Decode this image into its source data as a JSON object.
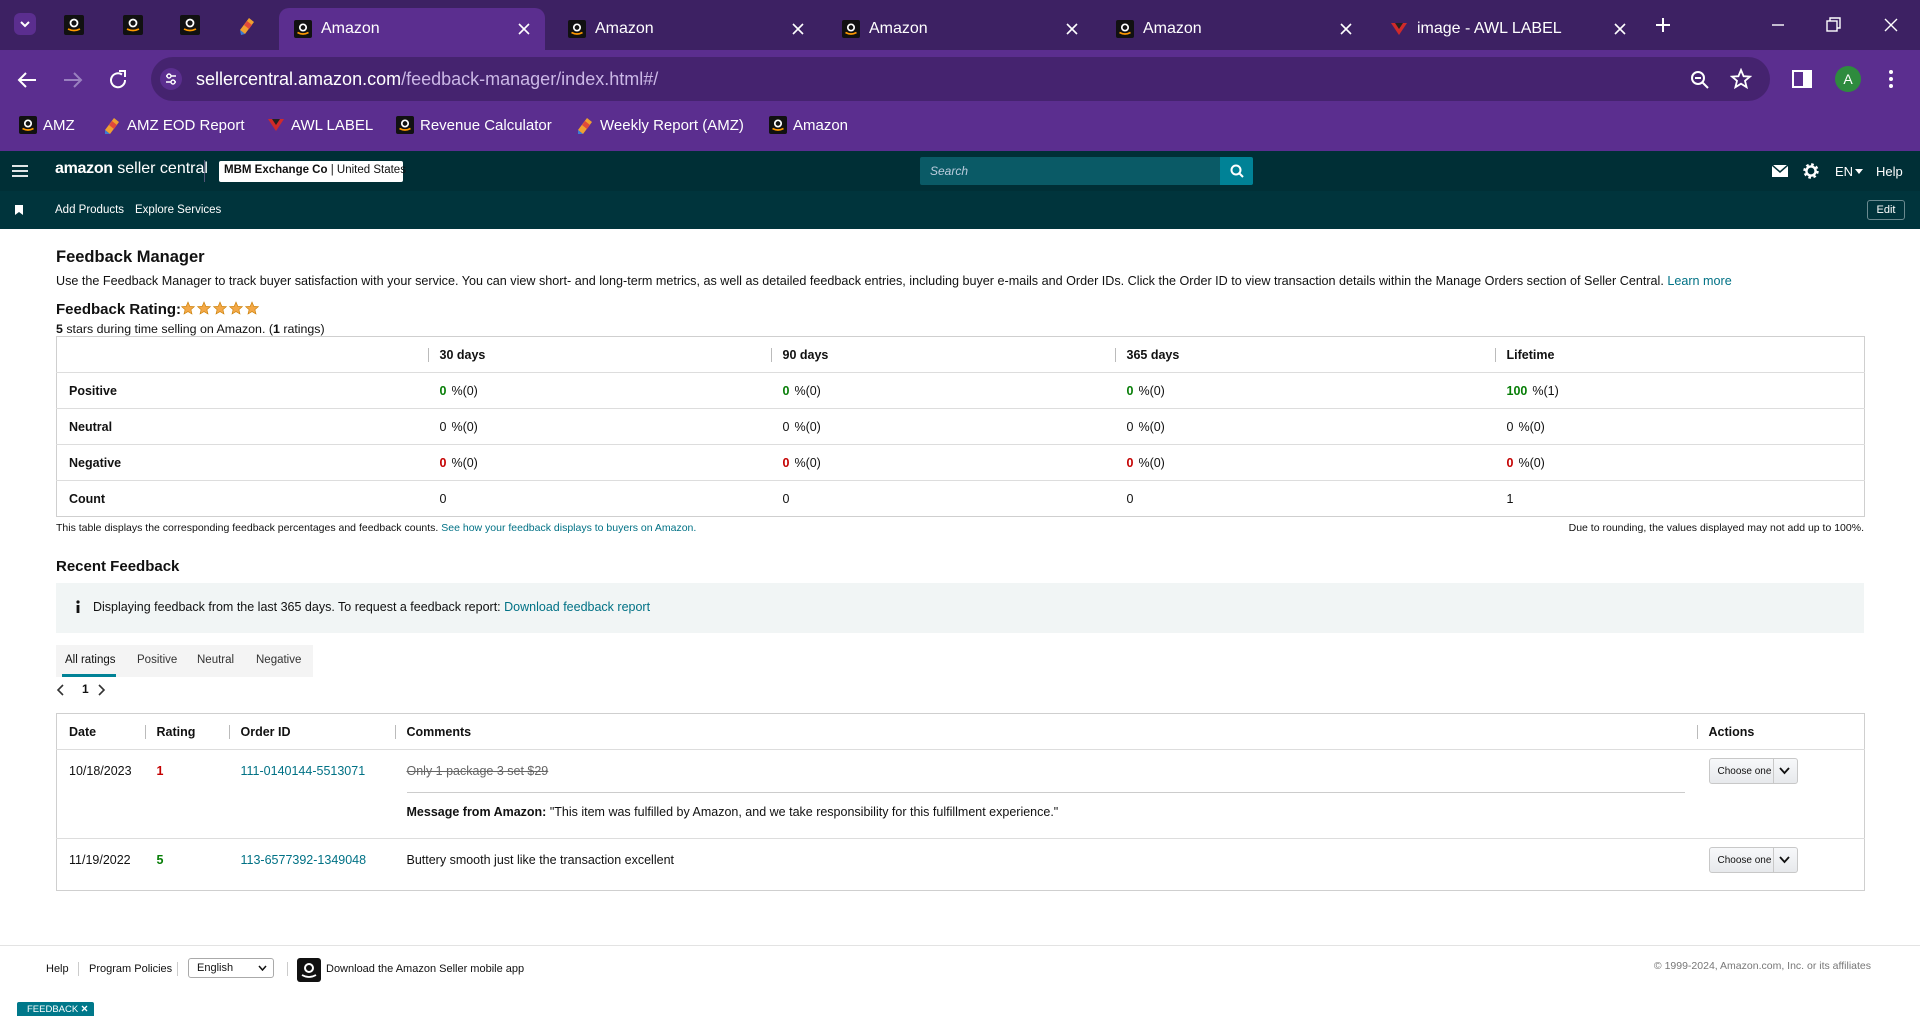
{
  "browser": {
    "tabs": [
      "Amazon",
      "Amazon",
      "Amazon",
      "Amazon",
      "image - AWL LABEL"
    ],
    "url_host": "sellercentral.amazon.com",
    "url_path": "/feedback-manager/index.html#/",
    "profile": "A",
    "bookmarks": [
      "AMZ",
      "AMZ EOD Report",
      "AWL LABEL",
      "Revenue Calculator",
      "Weekly Report (AMZ)",
      "Amazon"
    ]
  },
  "header": {
    "logo_brand": "amazon",
    "logo_product": "seller central",
    "account": "MBM Exchange Co",
    "marketplace": "United States",
    "search": "Search",
    "language": "EN",
    "help": "Help",
    "nav": [
      "Add Products",
      "Explore Services"
    ],
    "edit": "Edit"
  },
  "feedback_manager": {
    "title": "Feedback Manager",
    "intro": "Use the Feedback Manager to track buyer satisfaction with your service. You can view short- and long-term metrics, as well as detailed feedback entries, including buyer e-mails and Order IDs. Click the Order ID to view transaction details within the Manage Orders section of Seller Central.",
    "learn_more": "Learn more",
    "rating_label": "Feedback Rating:",
    "summary": {
      "stars": "5",
      "text": " stars during time selling on Amazon. (",
      "count": "1",
      "end": " ratings)"
    },
    "metrics": {
      "columns": [
        "30 days",
        "90 days",
        "365 days",
        "Lifetime"
      ],
      "rows": [
        {
          "label": "Positive",
          "cells": [
            {
              "value": "0",
              "suffix": "%(0)"
            },
            {
              "value": "0",
              "suffix": "%(0)"
            },
            {
              "value": "0",
              "suffix": "%(0)"
            },
            {
              "value": "100",
              "suffix": "%(1)"
            }
          ]
        },
        {
          "label": "Neutral",
          "cells": [
            {
              "value": "0",
              "suffix": "%(0)"
            },
            {
              "value": "0",
              "suffix": "%(0)"
            },
            {
              "value": "0",
              "suffix": "%(0)"
            },
            {
              "value": "0",
              "suffix": "%(0)"
            }
          ]
        },
        {
          "label": "Negative",
          "cells": [
            {
              "value": "0",
              "suffix": "%(0)"
            },
            {
              "value": "0",
              "suffix": "%(0)"
            },
            {
              "value": "0",
              "suffix": "%(0)"
            },
            {
              "value": "0",
              "suffix": "%(0)"
            }
          ]
        },
        {
          "label": "Count",
          "cells": [
            {
              "value": "0"
            },
            {
              "value": "0"
            },
            {
              "value": "0"
            },
            {
              "value": "1"
            }
          ]
        }
      ]
    },
    "note": "This table displays the corresponding feedback percentages and feedback counts.",
    "note_link": "See how your feedback displays to buyers on Amazon.",
    "rounding_note": "Due to rounding, the values displayed may not add up to 100%."
  },
  "recent_feedback": {
    "title": "Recent Feedback",
    "info": "Displaying feedback from the last 365 days. To request a feedback report:",
    "info_link": "Download feedback report",
    "tabs": [
      "All ratings",
      "Positive",
      "Neutral",
      "Negative"
    ],
    "page": "1",
    "columns": [
      "Date",
      "Rating",
      "Order ID",
      "Comments",
      "Actions"
    ],
    "rows": [
      {
        "date": "10/18/2023",
        "rating": "1",
        "order_id": "111-0140144-5513071",
        "comment": "Only 1 package 3 set $29",
        "message_label": "Message from Amazon:",
        "message": "\"This item was fulfilled by Amazon, and we take responsibility for this fulfillment experience.\"",
        "action": "Choose one"
      },
      {
        "date": "11/19/2022",
        "rating": "5",
        "order_id": "113-6577392-1349048",
        "comment": "Buttery smooth just like the transaction excellent",
        "action": "Choose one"
      }
    ]
  },
  "footer": {
    "links": [
      "Help",
      "Program Policies"
    ],
    "language": "English",
    "app": "Download the Amazon Seller mobile app",
    "copyright": "© 1999-2024, Amazon.com, Inc. or its affiliates",
    "feedback_tab": "FEEDBACK"
  }
}
